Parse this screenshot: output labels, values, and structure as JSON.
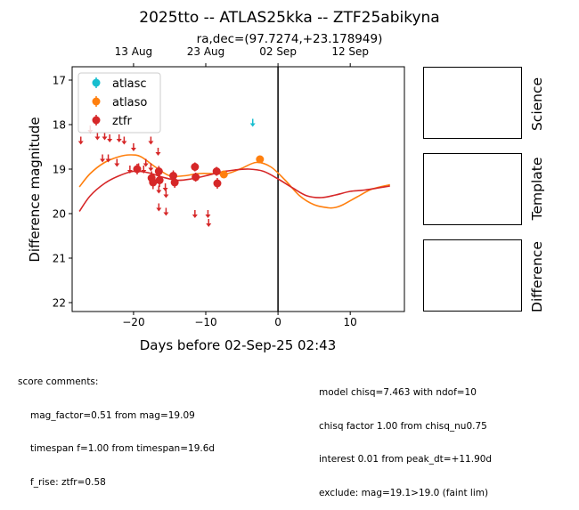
{
  "chart_data": {
    "type": "scatter",
    "title": "2025tto -- ATLAS25kka -- ZTF25abikyna",
    "subtitle": "ra,dec=(97.7274,+23.178949)",
    "xlabel": "Days before 02-Sep-25 02:43",
    "ylabel": "Difference magnitude",
    "xlim": [
      -28.5,
      17.5
    ],
    "ylim": [
      22.2,
      16.7
    ],
    "y_inverted": true,
    "x_ticks": [
      -20,
      -10,
      0,
      10
    ],
    "x_tick_labels": [
      "−20",
      "−10",
      "0",
      "10"
    ],
    "y_ticks": [
      17,
      18,
      19,
      20,
      21,
      22
    ],
    "top_axis_ticks": [
      {
        "x": -20,
        "label": "13 Aug"
      },
      {
        "x": -10,
        "label": "23 Aug"
      },
      {
        "x": 0,
        "label": "02 Sep"
      },
      {
        "x": 10,
        "label": "12 Sep"
      }
    ],
    "vertical_line_x": 0,
    "grid": false,
    "legend_position": "top-left",
    "series": [
      {
        "name": "atlasc",
        "color": "#17becf",
        "points": [],
        "upper_limits": [
          {
            "x": -3.5,
            "y": 17.95
          }
        ]
      },
      {
        "name": "atlaso",
        "color": "#ff7f0e",
        "points": [
          {
            "x": -7.5,
            "y": 19.12,
            "err": 0.06
          },
          {
            "x": -2.5,
            "y": 18.78,
            "err": 0.06
          }
        ],
        "upper_limits": []
      },
      {
        "name": "ztfr",
        "color": "#d62728",
        "points": [
          {
            "x": -19.5,
            "y": 19.0,
            "err": 0.12
          },
          {
            "x": -17.5,
            "y": 19.2,
            "err": 0.15
          },
          {
            "x": -17.3,
            "y": 19.3,
            "err": 0.15
          },
          {
            "x": -16.5,
            "y": 19.05,
            "err": 0.12
          },
          {
            "x": -16.4,
            "y": 19.25,
            "err": 0.15
          },
          {
            "x": -14.5,
            "y": 19.15,
            "err": 0.12
          },
          {
            "x": -14.3,
            "y": 19.3,
            "err": 0.12
          },
          {
            "x": -11.5,
            "y": 18.95,
            "err": 0.1
          },
          {
            "x": -11.4,
            "y": 19.18,
            "err": 0.1
          },
          {
            "x": -8.5,
            "y": 19.05,
            "err": 0.1
          },
          {
            "x": -8.4,
            "y": 19.32,
            "err": 0.12
          }
        ],
        "upper_limits": [
          {
            "x": -27.3,
            "y": 18.35
          },
          {
            "x": -26.0,
            "y": 18.1
          },
          {
            "x": -25.0,
            "y": 18.25
          },
          {
            "x": -24.3,
            "y": 18.75
          },
          {
            "x": -24.0,
            "y": 18.25
          },
          {
            "x": -23.5,
            "y": 18.75
          },
          {
            "x": -23.3,
            "y": 18.3
          },
          {
            "x": -22.0,
            "y": 18.3
          },
          {
            "x": -22.3,
            "y": 18.85
          },
          {
            "x": -21.3,
            "y": 18.35
          },
          {
            "x": -20.5,
            "y": 19.0
          },
          {
            "x": -20.0,
            "y": 18.5
          },
          {
            "x": -19.3,
            "y": 18.95
          },
          {
            "x": -18.6,
            "y": 19.0
          },
          {
            "x": -18.3,
            "y": 18.85
          },
          {
            "x": -17.6,
            "y": 18.95
          },
          {
            "x": -17.6,
            "y": 18.35
          },
          {
            "x": -16.6,
            "y": 18.6
          },
          {
            "x": -16.5,
            "y": 19.45
          },
          {
            "x": -16.5,
            "y": 19.85
          },
          {
            "x": -15.6,
            "y": 19.4
          },
          {
            "x": -15.5,
            "y": 19.55
          },
          {
            "x": -15.5,
            "y": 19.95
          },
          {
            "x": -11.5,
            "y": 20.0
          },
          {
            "x": -9.7,
            "y": 20.0
          },
          {
            "x": -9.6,
            "y": 20.2
          }
        ]
      }
    ],
    "model_curves": [
      {
        "color": "#ff7f0e",
        "x": [
          -27.5,
          -26,
          -24,
          -22,
          -20.5,
          -19,
          -17,
          -15,
          -13,
          -11,
          -9,
          -7,
          -5,
          -3,
          -1,
          1,
          3,
          5,
          7,
          8,
          9,
          11,
          13,
          15.5
        ],
        "y": [
          19.4,
          19.1,
          18.85,
          18.72,
          18.68,
          18.72,
          18.95,
          19.15,
          19.15,
          19.1,
          19.1,
          19.1,
          18.98,
          18.85,
          18.95,
          19.25,
          19.6,
          19.8,
          19.87,
          19.86,
          19.8,
          19.62,
          19.45,
          19.35
        ]
      },
      {
        "color": "#d62728",
        "x": [
          -27.5,
          -26,
          -24,
          -22,
          -20,
          -18,
          -16,
          -14,
          -12,
          -10,
          -8,
          -6,
          -4,
          -2,
          0,
          2,
          4,
          6,
          8,
          10,
          12,
          15.5
        ],
        "y": [
          19.95,
          19.6,
          19.32,
          19.15,
          19.05,
          19.08,
          19.18,
          19.25,
          19.22,
          19.15,
          19.07,
          19.02,
          19.0,
          19.05,
          19.22,
          19.42,
          19.6,
          19.64,
          19.58,
          19.5,
          19.47,
          19.38
        ]
      }
    ]
  },
  "thumbnails": {
    "science_label": "Science",
    "template_label": "Template",
    "difference_label": "Difference"
  },
  "score_comments": {
    "header": "score comments:",
    "lines": [
      "mag_factor=0.51 from mag=19.09",
      "timespan f=1.00 from timespan=19.6d",
      "f_rise: ztfr=0.58"
    ]
  },
  "model_comments": {
    "lines": [
      "model chisq=7.463 with ndof=10",
      "chisq factor 1.00 from chisq_nu0.75",
      "interest 0.01 from peak_dt=+11.90d",
      "exclude: mag=19.1>19.0 (faint lim)"
    ]
  }
}
